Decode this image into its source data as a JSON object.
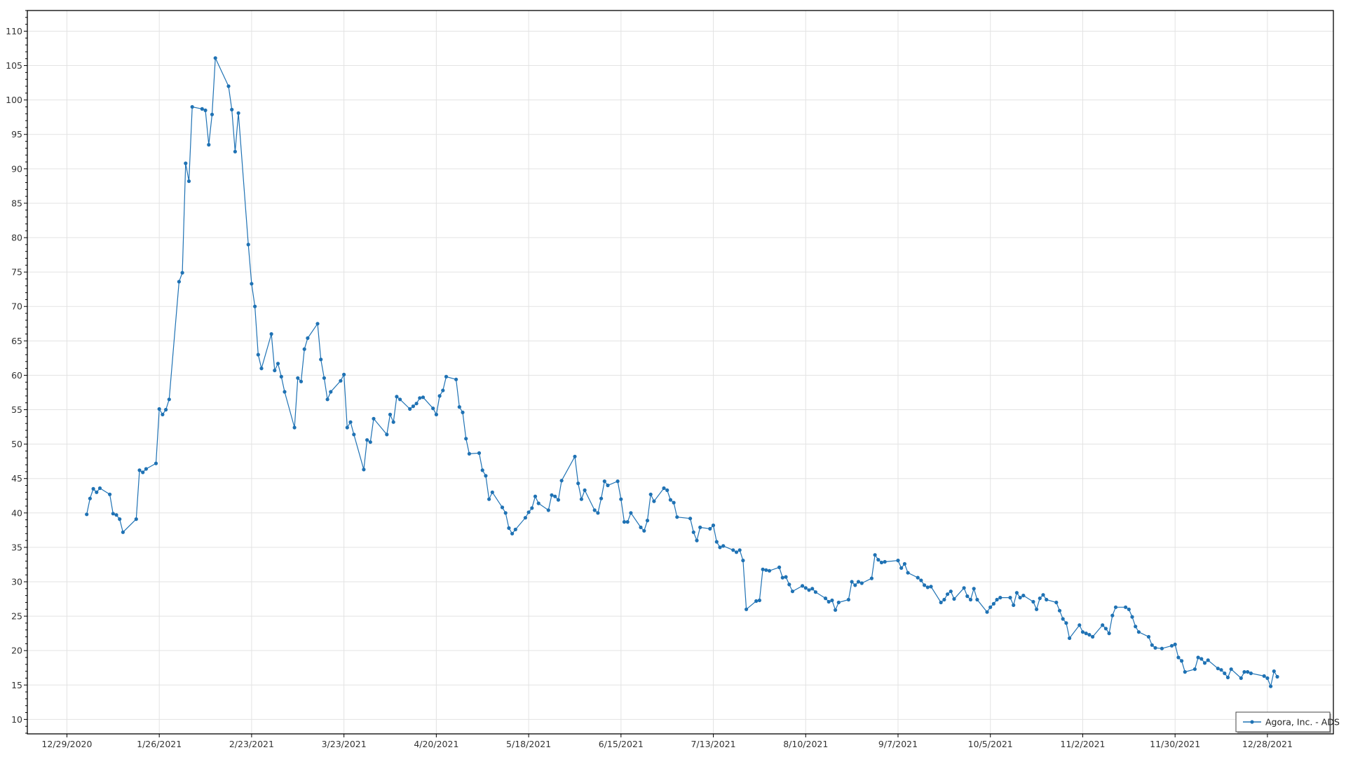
{
  "chart_data": {
    "type": "line",
    "title": "",
    "xlabel": "",
    "ylabel": "",
    "xlim": [
      "2020-12-17",
      "2022-01-17"
    ],
    "ylim": [
      7.9,
      113
    ],
    "grid": true,
    "legend_placement": "bottom-right",
    "x_ticks": [
      "12/29/2020",
      "1/26/2021",
      "2/23/2021",
      "3/23/2021",
      "4/20/2021",
      "5/18/2021",
      "6/15/2021",
      "7/13/2021",
      "8/10/2021",
      "9/7/2021",
      "10/5/2021",
      "11/2/2021",
      "11/30/2021",
      "12/28/2021"
    ],
    "y_ticks": [
      "10",
      "15",
      "20",
      "25",
      "30",
      "35",
      "40",
      "45",
      "50",
      "55",
      "60",
      "65",
      "70",
      "75",
      "80",
      "85",
      "90",
      "95",
      "100",
      "105",
      "110"
    ],
    "colors": {
      "series": "#1f72b4",
      "grid": "#e3e3e3",
      "axis": "#000000"
    },
    "series": [
      {
        "name": "Agora, Inc. - ADS",
        "marker": "circle",
        "points": [
          [
            "2021-01-04",
            39.8
          ],
          [
            "2021-01-05",
            42.1
          ],
          [
            "2021-01-06",
            43.5
          ],
          [
            "2021-01-07",
            43.0
          ],
          [
            "2021-01-08",
            43.6
          ],
          [
            "2021-01-11",
            42.7
          ],
          [
            "2021-01-12",
            39.9
          ],
          [
            "2021-01-13",
            39.7
          ],
          [
            "2021-01-14",
            39.1
          ],
          [
            "2021-01-15",
            37.2
          ],
          [
            "2021-01-19",
            39.1
          ],
          [
            "2021-01-20",
            46.2
          ],
          [
            "2021-01-21",
            45.9
          ],
          [
            "2021-01-22",
            46.4
          ],
          [
            "2021-01-25",
            47.2
          ],
          [
            "2021-01-26",
            55.1
          ],
          [
            "2021-01-27",
            54.3
          ],
          [
            "2021-01-28",
            55.0
          ],
          [
            "2021-01-29",
            56.5
          ],
          [
            "2021-02-01",
            73.6
          ],
          [
            "2021-02-02",
            74.9
          ],
          [
            "2021-02-03",
            90.8
          ],
          [
            "2021-02-04",
            88.2
          ],
          [
            "2021-02-05",
            99.0
          ],
          [
            "2021-02-08",
            98.7
          ],
          [
            "2021-02-09",
            98.5
          ],
          [
            "2021-02-10",
            93.5
          ],
          [
            "2021-02-11",
            97.9
          ],
          [
            "2021-02-12",
            106.1
          ],
          [
            "2021-02-16",
            102.0
          ],
          [
            "2021-02-17",
            98.6
          ],
          [
            "2021-02-18",
            92.5
          ],
          [
            "2021-02-19",
            98.1
          ],
          [
            "2021-02-22",
            79.0
          ],
          [
            "2021-02-23",
            73.3
          ],
          [
            "2021-02-24",
            70.0
          ],
          [
            "2021-02-25",
            63.0
          ],
          [
            "2021-02-26",
            61.0
          ],
          [
            "2021-03-01",
            66.0
          ],
          [
            "2021-03-02",
            60.7
          ],
          [
            "2021-03-03",
            61.7
          ],
          [
            "2021-03-04",
            59.8
          ],
          [
            "2021-03-05",
            57.6
          ],
          [
            "2021-03-08",
            52.4
          ],
          [
            "2021-03-09",
            59.6
          ],
          [
            "2021-03-10",
            59.1
          ],
          [
            "2021-03-11",
            63.8
          ],
          [
            "2021-03-12",
            65.4
          ],
          [
            "2021-03-15",
            67.5
          ],
          [
            "2021-03-16",
            62.3
          ],
          [
            "2021-03-17",
            59.6
          ],
          [
            "2021-03-18",
            56.5
          ],
          [
            "2021-03-19",
            57.6
          ],
          [
            "2021-03-22",
            59.2
          ],
          [
            "2021-03-23",
            60.1
          ],
          [
            "2021-03-24",
            52.4
          ],
          [
            "2021-03-25",
            53.2
          ],
          [
            "2021-03-26",
            51.4
          ],
          [
            "2021-03-29",
            46.3
          ],
          [
            "2021-03-30",
            50.6
          ],
          [
            "2021-03-31",
            50.3
          ],
          [
            "2021-04-01",
            53.7
          ],
          [
            "2021-04-05",
            51.4
          ],
          [
            "2021-04-06",
            54.3
          ],
          [
            "2021-04-07",
            53.2
          ],
          [
            "2021-04-08",
            56.9
          ],
          [
            "2021-04-09",
            56.5
          ],
          [
            "2021-04-12",
            55.1
          ],
          [
            "2021-04-13",
            55.5
          ],
          [
            "2021-04-14",
            55.9
          ],
          [
            "2021-04-15",
            56.7
          ],
          [
            "2021-04-16",
            56.8
          ],
          [
            "2021-04-19",
            55.2
          ],
          [
            "2021-04-20",
            54.3
          ],
          [
            "2021-04-21",
            57.0
          ],
          [
            "2021-04-22",
            57.8
          ],
          [
            "2021-04-23",
            59.8
          ],
          [
            "2021-04-26",
            59.4
          ],
          [
            "2021-04-27",
            55.4
          ],
          [
            "2021-04-28",
            54.6
          ],
          [
            "2021-04-29",
            50.8
          ],
          [
            "2021-04-30",
            48.6
          ],
          [
            "2021-05-03",
            48.7
          ],
          [
            "2021-05-04",
            46.2
          ],
          [
            "2021-05-05",
            45.4
          ],
          [
            "2021-05-06",
            42.0
          ],
          [
            "2021-05-07",
            43.0
          ],
          [
            "2021-05-10",
            40.8
          ],
          [
            "2021-05-11",
            40.0
          ],
          [
            "2021-05-12",
            37.8
          ],
          [
            "2021-05-13",
            37.0
          ],
          [
            "2021-05-14",
            37.6
          ],
          [
            "2021-05-17",
            39.3
          ],
          [
            "2021-05-18",
            40.1
          ],
          [
            "2021-05-19",
            40.7
          ],
          [
            "2021-05-20",
            42.4
          ],
          [
            "2021-05-21",
            41.4
          ],
          [
            "2021-05-24",
            40.4
          ],
          [
            "2021-05-25",
            42.6
          ],
          [
            "2021-05-26",
            42.4
          ],
          [
            "2021-05-27",
            41.9
          ],
          [
            "2021-05-28",
            44.7
          ],
          [
            "2021-06-01",
            48.2
          ],
          [
            "2021-06-02",
            44.3
          ],
          [
            "2021-06-03",
            42.0
          ],
          [
            "2021-06-04",
            43.3
          ],
          [
            "2021-06-07",
            40.4
          ],
          [
            "2021-06-08",
            40.0
          ],
          [
            "2021-06-09",
            42.1
          ],
          [
            "2021-06-10",
            44.6
          ],
          [
            "2021-06-11",
            44.0
          ],
          [
            "2021-06-14",
            44.6
          ],
          [
            "2021-06-15",
            42.0
          ],
          [
            "2021-06-16",
            38.7
          ],
          [
            "2021-06-17",
            38.7
          ],
          [
            "2021-06-18",
            40.0
          ],
          [
            "2021-06-21",
            37.9
          ],
          [
            "2021-06-22",
            37.4
          ],
          [
            "2021-06-23",
            38.9
          ],
          [
            "2021-06-24",
            42.7
          ],
          [
            "2021-06-25",
            41.7
          ],
          [
            "2021-06-28",
            43.6
          ],
          [
            "2021-06-29",
            43.3
          ],
          [
            "2021-06-30",
            41.9
          ],
          [
            "2021-07-01",
            41.5
          ],
          [
            "2021-07-02",
            39.4
          ],
          [
            "2021-07-06",
            39.2
          ],
          [
            "2021-07-07",
            37.2
          ],
          [
            "2021-07-08",
            36.0
          ],
          [
            "2021-07-09",
            37.9
          ],
          [
            "2021-07-12",
            37.7
          ],
          [
            "2021-07-13",
            38.2
          ],
          [
            "2021-07-14",
            35.8
          ],
          [
            "2021-07-15",
            35.0
          ],
          [
            "2021-07-16",
            35.2
          ],
          [
            "2021-07-19",
            34.6
          ],
          [
            "2021-07-20",
            34.3
          ],
          [
            "2021-07-21",
            34.6
          ],
          [
            "2021-07-22",
            33.1
          ],
          [
            "2021-07-23",
            26.0
          ],
          [
            "2021-07-26",
            27.2
          ],
          [
            "2021-07-27",
            27.3
          ],
          [
            "2021-07-28",
            31.8
          ],
          [
            "2021-07-29",
            31.7
          ],
          [
            "2021-07-30",
            31.6
          ],
          [
            "2021-08-02",
            32.1
          ],
          [
            "2021-08-03",
            30.6
          ],
          [
            "2021-08-04",
            30.7
          ],
          [
            "2021-08-05",
            29.6
          ],
          [
            "2021-08-06",
            28.6
          ],
          [
            "2021-08-09",
            29.4
          ],
          [
            "2021-08-10",
            29.1
          ],
          [
            "2021-08-11",
            28.8
          ],
          [
            "2021-08-12",
            29.0
          ],
          [
            "2021-08-13",
            28.5
          ],
          [
            "2021-08-16",
            27.6
          ],
          [
            "2021-08-17",
            27.1
          ],
          [
            "2021-08-18",
            27.3
          ],
          [
            "2021-08-19",
            25.9
          ],
          [
            "2021-08-20",
            27.0
          ],
          [
            "2021-08-23",
            27.4
          ],
          [
            "2021-08-24",
            30.0
          ],
          [
            "2021-08-25",
            29.5
          ],
          [
            "2021-08-26",
            30.0
          ],
          [
            "2021-08-27",
            29.8
          ],
          [
            "2021-08-30",
            30.5
          ],
          [
            "2021-08-31",
            33.9
          ],
          [
            "2021-09-01",
            33.2
          ],
          [
            "2021-09-02",
            32.8
          ],
          [
            "2021-09-03",
            32.9
          ],
          [
            "2021-09-07",
            33.1
          ],
          [
            "2021-09-08",
            32.0
          ],
          [
            "2021-09-09",
            32.6
          ],
          [
            "2021-09-10",
            31.3
          ],
          [
            "2021-09-13",
            30.6
          ],
          [
            "2021-09-14",
            30.2
          ],
          [
            "2021-09-15",
            29.5
          ],
          [
            "2021-09-16",
            29.2
          ],
          [
            "2021-09-17",
            29.3
          ],
          [
            "2021-09-20",
            27.0
          ],
          [
            "2021-09-21",
            27.4
          ],
          [
            "2021-09-22",
            28.2
          ],
          [
            "2021-09-23",
            28.6
          ],
          [
            "2021-09-24",
            27.5
          ],
          [
            "2021-09-27",
            29.1
          ],
          [
            "2021-09-28",
            27.9
          ],
          [
            "2021-09-29",
            27.4
          ],
          [
            "2021-09-30",
            29.0
          ],
          [
            "2021-10-01",
            27.4
          ],
          [
            "2021-10-04",
            25.6
          ],
          [
            "2021-10-05",
            26.3
          ],
          [
            "2021-10-06",
            26.8
          ],
          [
            "2021-10-07",
            27.4
          ],
          [
            "2021-10-08",
            27.7
          ],
          [
            "2021-10-11",
            27.7
          ],
          [
            "2021-10-12",
            26.6
          ],
          [
            "2021-10-13",
            28.4
          ],
          [
            "2021-10-14",
            27.7
          ],
          [
            "2021-10-15",
            28.0
          ],
          [
            "2021-10-18",
            27.1
          ],
          [
            "2021-10-19",
            26.0
          ],
          [
            "2021-10-20",
            27.6
          ],
          [
            "2021-10-21",
            28.1
          ],
          [
            "2021-10-22",
            27.4
          ],
          [
            "2021-10-25",
            27.0
          ],
          [
            "2021-10-26",
            25.8
          ],
          [
            "2021-10-27",
            24.6
          ],
          [
            "2021-10-28",
            24.0
          ],
          [
            "2021-10-29",
            21.8
          ],
          [
            "2021-11-01",
            23.7
          ],
          [
            "2021-11-02",
            22.7
          ],
          [
            "2021-11-03",
            22.5
          ],
          [
            "2021-11-04",
            22.3
          ],
          [
            "2021-11-05",
            22.0
          ],
          [
            "2021-11-08",
            23.7
          ],
          [
            "2021-11-09",
            23.2
          ],
          [
            "2021-11-10",
            22.5
          ],
          [
            "2021-11-11",
            25.1
          ],
          [
            "2021-11-12",
            26.3
          ],
          [
            "2021-11-15",
            26.3
          ],
          [
            "2021-11-16",
            26.0
          ],
          [
            "2021-11-17",
            24.9
          ],
          [
            "2021-11-18",
            23.5
          ],
          [
            "2021-11-19",
            22.7
          ],
          [
            "2021-11-22",
            22.0
          ],
          [
            "2021-11-23",
            20.8
          ],
          [
            "2021-11-24",
            20.4
          ],
          [
            "2021-11-26",
            20.3
          ],
          [
            "2021-11-29",
            20.7
          ],
          [
            "2021-11-30",
            20.9
          ],
          [
            "2021-12-01",
            19.0
          ],
          [
            "2021-12-02",
            18.5
          ],
          [
            "2021-12-03",
            16.9
          ],
          [
            "2021-12-06",
            17.3
          ],
          [
            "2021-12-07",
            19.0
          ],
          [
            "2021-12-08",
            18.8
          ],
          [
            "2021-12-09",
            18.2
          ],
          [
            "2021-12-10",
            18.6
          ],
          [
            "2021-12-13",
            17.4
          ],
          [
            "2021-12-14",
            17.2
          ],
          [
            "2021-12-15",
            16.7
          ],
          [
            "2021-12-16",
            16.1
          ],
          [
            "2021-12-17",
            17.3
          ],
          [
            "2021-12-20",
            16.0
          ],
          [
            "2021-12-21",
            16.9
          ],
          [
            "2021-12-22",
            16.9
          ],
          [
            "2021-12-23",
            16.7
          ],
          [
            "2021-12-27",
            16.3
          ],
          [
            "2021-12-28",
            16.0
          ],
          [
            "2021-12-29",
            14.8
          ],
          [
            "2021-12-30",
            17.0
          ],
          [
            "2021-12-31",
            16.2
          ]
        ]
      }
    ]
  }
}
